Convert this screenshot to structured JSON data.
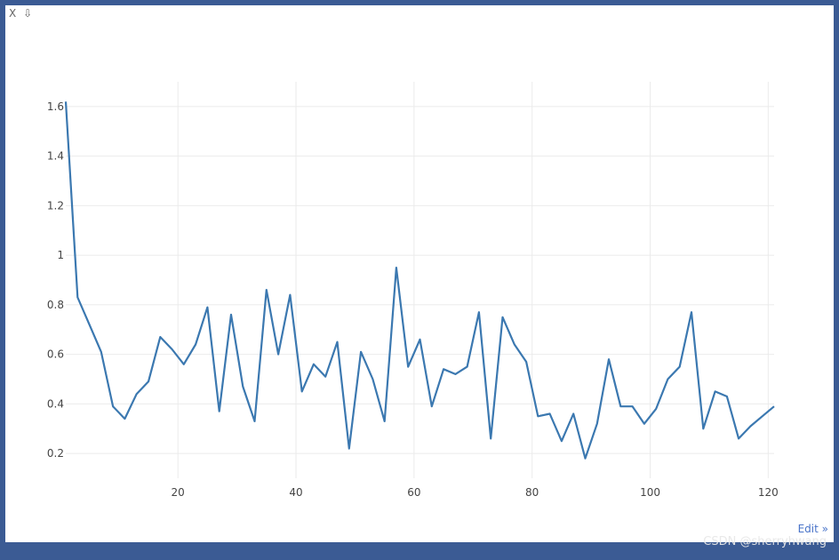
{
  "toolbar": {
    "close_glyph": "X",
    "download_glyph": "⇩"
  },
  "edit_label": "Edit »",
  "watermark_text": "CSDN @sherryhwang",
  "colors": {
    "line": "#3b78b0",
    "grid": "#ebebeb",
    "frame": "#3b5b94"
  },
  "chart_data": {
    "type": "line",
    "title": "",
    "xlabel": "",
    "ylabel": "",
    "xlim": [
      1,
      121
    ],
    "ylim": [
      0.1,
      1.7
    ],
    "xticks": [
      20,
      40,
      60,
      80,
      100,
      120
    ],
    "yticks": [
      0.2,
      0.4,
      0.6,
      0.8,
      1,
      1.2,
      1.4,
      1.6
    ],
    "grid": true,
    "x": [
      1,
      3,
      5,
      7,
      9,
      11,
      13,
      15,
      17,
      19,
      21,
      23,
      25,
      27,
      29,
      31,
      33,
      35,
      37,
      39,
      41,
      43,
      45,
      47,
      49,
      51,
      53,
      55,
      57,
      59,
      61,
      63,
      65,
      67,
      69,
      71,
      73,
      75,
      77,
      79,
      81,
      83,
      85,
      87,
      89,
      91,
      93,
      95,
      97,
      99,
      101,
      103,
      105,
      107,
      109,
      111,
      113,
      115,
      117,
      119,
      121
    ],
    "values": [
      1.62,
      0.83,
      0.72,
      0.61,
      0.39,
      0.34,
      0.44,
      0.49,
      0.67,
      0.62,
      0.56,
      0.64,
      0.79,
      0.37,
      0.76,
      0.47,
      0.33,
      0.86,
      0.6,
      0.84,
      0.45,
      0.56,
      0.51,
      0.65,
      0.22,
      0.61,
      0.5,
      0.33,
      0.95,
      0.55,
      0.66,
      0.39,
      0.54,
      0.52,
      0.55,
      0.77,
      0.26,
      0.75,
      0.64,
      0.57,
      0.35,
      0.36,
      0.25,
      0.36,
      0.18,
      0.32,
      0.58,
      0.39,
      0.39,
      0.32,
      0.38,
      0.5,
      0.55,
      0.77,
      0.3,
      0.45,
      0.43,
      0.26,
      0.31,
      0.35,
      0.39
    ]
  }
}
